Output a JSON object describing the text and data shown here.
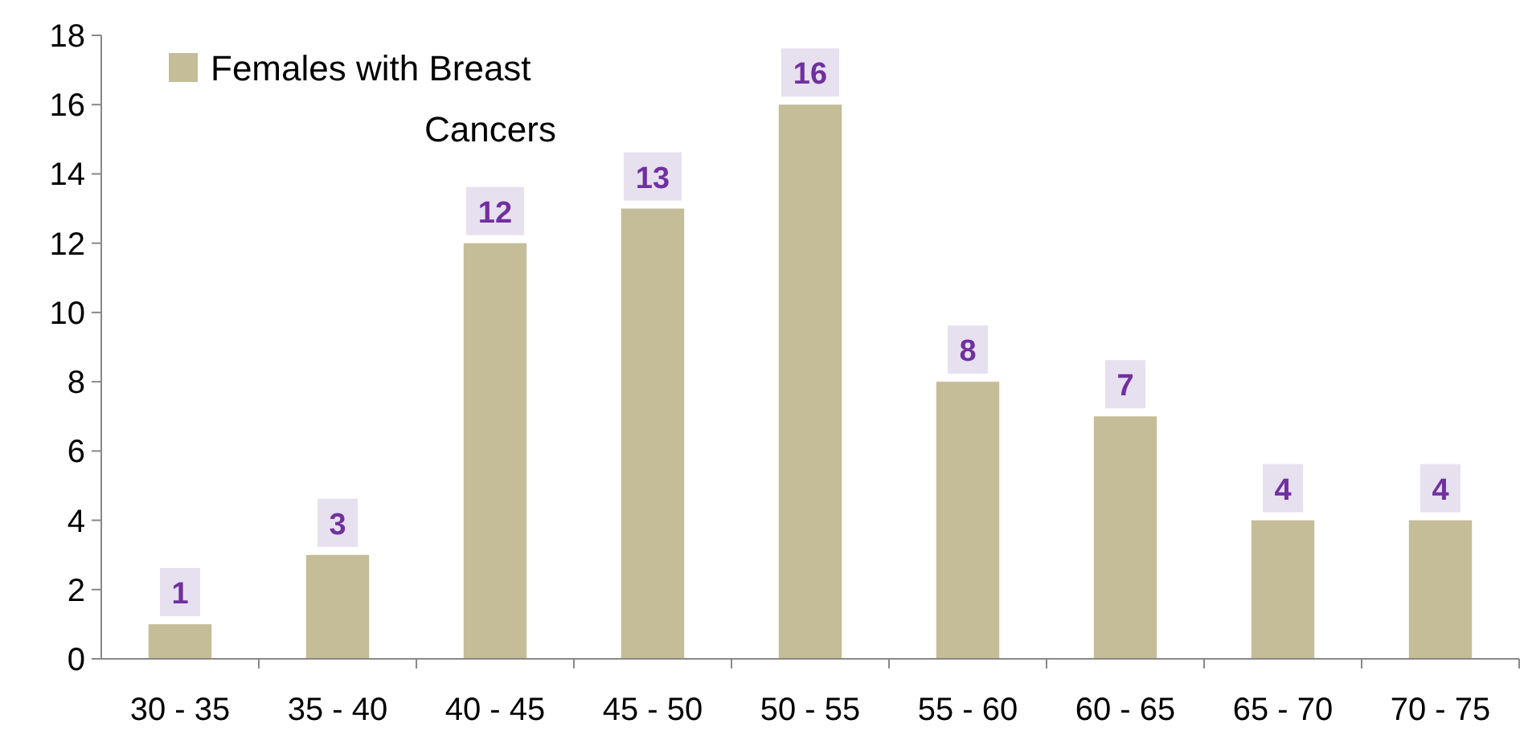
{
  "chart_data": {
    "type": "bar",
    "categories": [
      "30 - 35",
      "35 - 40",
      "40 - 45",
      "45 - 50",
      "50 - 55",
      "55 - 60",
      "60 - 65",
      "65 - 70",
      "70 - 75"
    ],
    "series": [
      {
        "name": "Females with Breast Cancers",
        "color": "#c4bd97",
        "values": [
          1,
          3,
          12,
          13,
          16,
          8,
          7,
          4,
          4
        ]
      }
    ],
    "ylim": [
      0,
      18
    ],
    "yticks": [
      0,
      2,
      4,
      6,
      8,
      10,
      12,
      14,
      16,
      18
    ],
    "grid": false,
    "legend": "top left",
    "data_labels": true
  }
}
